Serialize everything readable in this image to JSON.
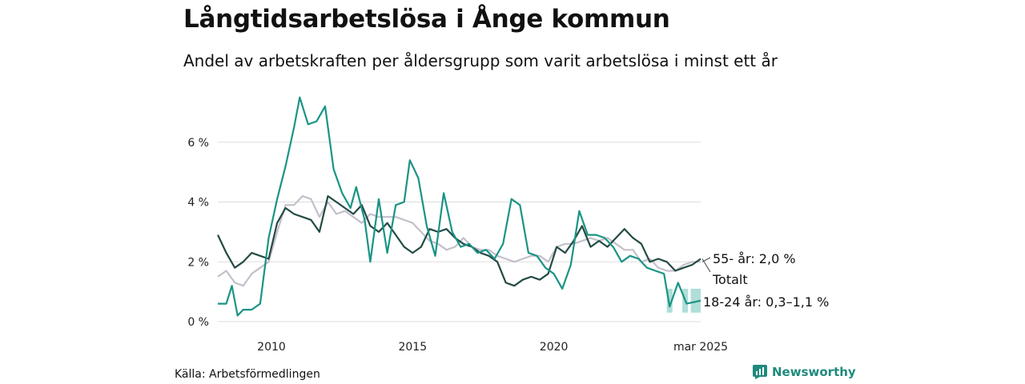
{
  "title": "Långtidsarbetslösa i Ånge kommun",
  "subtitle": "Andel av arbetskraften per åldersgrupp som varit arbetslösa i minst ett år",
  "source": "Källa: Arbetsförmedlingen",
  "brand": "Newsworthy",
  "colors": {
    "youth": "#1a9485",
    "senior": "#c5bfcb",
    "total": "#234b44",
    "grid": "#dddddd",
    "youth_band": "#8fd0c8"
  },
  "chart_data": {
    "type": "line",
    "title": "Långtidsarbetslösa i Ånge kommun",
    "subtitle": "Andel av arbetskraften per åldersgrupp som varit arbetslösa i minst ett år",
    "xlabel": "",
    "ylabel": "",
    "xlim": [
      2008.1,
      2025.2
    ],
    "ylim": [
      0,
      7.6
    ],
    "x_ticks": [
      2010,
      2015,
      2020,
      2025.2
    ],
    "x_tick_labels": [
      "2010",
      "2015",
      "2020",
      "mar 2025"
    ],
    "y_ticks": [
      0,
      2,
      4,
      6
    ],
    "y_tick_labels": [
      "0 %",
      "2 %",
      "4 %",
      "6 %"
    ],
    "grid": "horizontal",
    "legend": "none",
    "end_labels": {
      "senior": "55- år: 2,0 %",
      "total": "Totalt",
      "youth": "18-24 år: 0,3–1,1 %"
    },
    "series": [
      {
        "name": "55- år",
        "key": "senior",
        "x": [
          2008.1,
          2008.4,
          2008.7,
          2009.0,
          2009.3,
          2009.6,
          2009.9,
          2010.2,
          2010.5,
          2010.8,
          2011.1,
          2011.4,
          2011.7,
          2012.0,
          2012.3,
          2012.6,
          2012.9,
          2013.2,
          2013.5,
          2013.8,
          2014.1,
          2014.4,
          2014.7,
          2015.0,
          2015.3,
          2015.6,
          2015.9,
          2016.2,
          2016.5,
          2016.8,
          2017.1,
          2017.4,
          2017.7,
          2018.0,
          2018.3,
          2018.6,
          2018.9,
          2019.2,
          2019.5,
          2019.8,
          2020.1,
          2020.4,
          2020.7,
          2021.0,
          2021.3,
          2021.6,
          2021.9,
          2022.2,
          2022.5,
          2022.8,
          2023.1,
          2023.4,
          2023.7,
          2024.0,
          2024.3,
          2024.6,
          2024.9,
          2025.2
        ],
        "values": [
          1.5,
          1.7,
          1.3,
          1.2,
          1.6,
          1.8,
          2.0,
          3.0,
          3.9,
          3.9,
          4.2,
          4.1,
          3.5,
          4.0,
          3.6,
          3.7,
          3.5,
          3.3,
          3.6,
          3.5,
          3.5,
          3.5,
          3.4,
          3.3,
          3.0,
          2.7,
          2.6,
          2.4,
          2.5,
          2.8,
          2.5,
          2.4,
          2.4,
          2.2,
          2.1,
          2.0,
          2.1,
          2.2,
          2.2,
          2.0,
          2.5,
          2.6,
          2.6,
          2.7,
          2.8,
          2.7,
          2.8,
          2.6,
          2.4,
          2.4,
          2.0,
          2.1,
          1.8,
          1.7,
          1.7,
          1.9,
          2.0,
          2.0
        ]
      },
      {
        "name": "Totalt",
        "key": "total",
        "x": [
          2008.1,
          2008.4,
          2008.7,
          2009.0,
          2009.3,
          2009.6,
          2009.9,
          2010.2,
          2010.5,
          2010.8,
          2011.1,
          2011.4,
          2011.7,
          2012.0,
          2012.3,
          2012.6,
          2012.9,
          2013.2,
          2013.5,
          2013.8,
          2014.1,
          2014.4,
          2014.7,
          2015.0,
          2015.3,
          2015.6,
          2015.9,
          2016.2,
          2016.5,
          2016.8,
          2017.1,
          2017.4,
          2017.7,
          2018.0,
          2018.3,
          2018.6,
          2018.9,
          2019.2,
          2019.5,
          2019.8,
          2020.1,
          2020.4,
          2020.7,
          2021.0,
          2021.3,
          2021.6,
          2021.9,
          2022.2,
          2022.5,
          2022.8,
          2023.1,
          2023.4,
          2023.7,
          2024.0,
          2024.3,
          2024.6,
          2024.9,
          2025.2
        ],
        "values": [
          2.9,
          2.3,
          1.8,
          2.0,
          2.3,
          2.2,
          2.1,
          3.3,
          3.8,
          3.6,
          3.5,
          3.4,
          3.0,
          4.2,
          4.0,
          3.8,
          3.6,
          3.9,
          3.2,
          3.0,
          3.3,
          2.9,
          2.5,
          2.3,
          2.5,
          3.1,
          3.0,
          3.1,
          2.8,
          2.6,
          2.5,
          2.3,
          2.2,
          2.0,
          1.3,
          1.2,
          1.4,
          1.5,
          1.4,
          1.6,
          2.5,
          2.3,
          2.7,
          3.2,
          2.5,
          2.7,
          2.5,
          2.8,
          3.1,
          2.8,
          2.6,
          2.0,
          2.1,
          2.0,
          1.7,
          1.8,
          1.9,
          2.1
        ]
      },
      {
        "name": "18-24 år",
        "key": "youth",
        "x": [
          2008.1,
          2008.4,
          2008.6,
          2008.8,
          2009.0,
          2009.3,
          2009.6,
          2009.9,
          2010.2,
          2010.5,
          2010.8,
          2011.0,
          2011.3,
          2011.6,
          2011.9,
          2012.2,
          2012.5,
          2012.8,
          2013.0,
          2013.3,
          2013.5,
          2013.8,
          2014.1,
          2014.4,
          2014.7,
          2014.9,
          2015.2,
          2015.5,
          2015.8,
          2016.1,
          2016.4,
          2016.7,
          2017.0,
          2017.3,
          2017.6,
          2017.9,
          2018.2,
          2018.5,
          2018.8,
          2019.1,
          2019.4,
          2019.7,
          2020.0,
          2020.3,
          2020.6,
          2020.9,
          2021.2,
          2021.5,
          2021.8,
          2022.1,
          2022.4,
          2022.7,
          2023.0,
          2023.3,
          2023.6,
          2023.9,
          2024.1,
          2024.4,
          2024.7,
          2025.2
        ],
        "values": [
          0.6,
          0.6,
          1.2,
          0.2,
          0.4,
          0.4,
          0.6,
          2.8,
          4.1,
          5.2,
          6.5,
          7.5,
          6.6,
          6.7,
          7.2,
          5.1,
          4.3,
          3.8,
          4.5,
          3.4,
          2.0,
          4.1,
          2.3,
          3.9,
          4.0,
          5.4,
          4.8,
          3.2,
          2.2,
          4.3,
          3.0,
          2.5,
          2.6,
          2.3,
          2.4,
          2.1,
          2.6,
          4.1,
          3.9,
          2.3,
          2.2,
          1.8,
          1.6,
          1.1,
          1.9,
          3.7,
          2.9,
          2.9,
          2.8,
          2.5,
          2.0,
          2.2,
          2.1,
          1.8,
          1.7,
          1.6,
          0.5,
          1.3,
          0.6,
          0.7
        ]
      }
    ],
    "youth_band": {
      "x_ranges": [
        [
          2024.0,
          2024.2
        ],
        [
          2024.55,
          2024.75
        ],
        [
          2024.85,
          2025.2
        ]
      ],
      "low": 0.3,
      "high": 1.1
    }
  }
}
